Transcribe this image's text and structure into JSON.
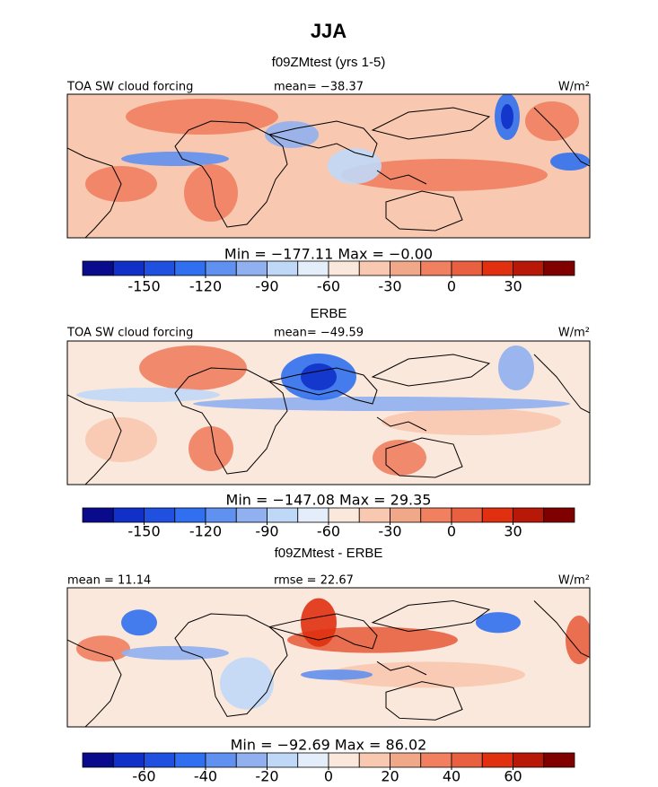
{
  "title": "JJA",
  "colorbar_colors": [
    "#0a0a8c",
    "#1030c8",
    "#2050e0",
    "#3070f0",
    "#6090f0",
    "#90b0f0",
    "#c0d8f8",
    "#e4eefa",
    "#fbe8dc",
    "#f8c8b0",
    "#f0a888",
    "#f08060",
    "#e86040",
    "#e03010",
    "#b81808",
    "#800000"
  ],
  "panels": [
    {
      "subtitle": "f09ZMtest (yrs 1-5)",
      "left": "TOA SW cloud forcing",
      "center": "mean= −38.37",
      "right": "W/m²",
      "stats": "Min = −177.11 Max = −0.00",
      "colorbar": {
        "range": [
          -180,
          60
        ],
        "ticks": [
          -150,
          -120,
          -90,
          -60,
          -30,
          0,
          30
        ]
      }
    },
    {
      "subtitle": "ERBE",
      "left": "TOA SW cloud forcing",
      "center": "mean= −49.59",
      "right": "W/m²",
      "stats": "Min = −147.08 Max = 29.35",
      "colorbar": {
        "range": [
          -180,
          60
        ],
        "ticks": [
          -150,
          -120,
          -90,
          -60,
          -30,
          0,
          30
        ]
      }
    },
    {
      "subtitle": "f09ZMtest - ERBE",
      "left": "mean = 11.14",
      "center": "rmse = 22.67",
      "right": "W/m²",
      "stats": "Min = −92.69 Max = 86.02",
      "colorbar": {
        "range": [
          -80,
          80
        ],
        "ticks": [
          -60,
          -40,
          -20,
          0,
          20,
          40,
          60
        ]
      }
    }
  ]
}
